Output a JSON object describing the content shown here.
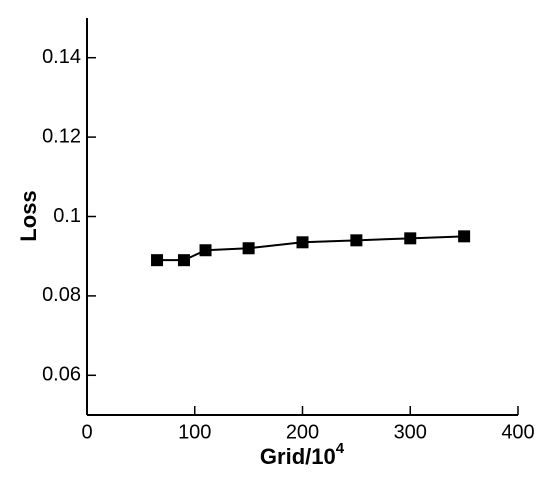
{
  "chart_data": {
    "type": "line",
    "x_label": "Grid/10",
    "x_label_superscript": "4",
    "y_label": "Loss",
    "x": [
      65,
      90,
      110,
      150,
      200,
      250,
      300,
      350
    ],
    "series": [
      {
        "color": "#000000",
        "values": [
          0.089,
          0.089,
          0.0915,
          0.092,
          0.0935,
          0.094,
          0.0945,
          0.095
        ]
      }
    ],
    "marker": "square",
    "xlim": [
      0,
      400
    ],
    "xticks": [
      0,
      100,
      200,
      300,
      400
    ],
    "ylim": [
      0.05,
      0.15
    ],
    "yticks": [
      0.06,
      0.08,
      0.1,
      0.12,
      0.14
    ],
    "grid": false
  }
}
